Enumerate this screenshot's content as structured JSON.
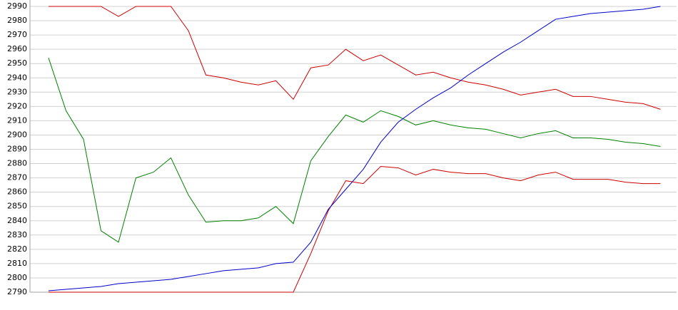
{
  "chart_data": {
    "type": "line",
    "categories": [
      null,
      null,
      null,
      null,
      null,
      null,
      null,
      null,
      null,
      null,
      null,
      null,
      null,
      null,
      null,
      null,
      null,
      null,
      null,
      null,
      null,
      null,
      null,
      null,
      null,
      null,
      null,
      null,
      null,
      null,
      null,
      null,
      null,
      null,
      null,
      null
    ],
    "series": [
      {
        "color": "#cc0000",
        "values": [
          2990,
          2990,
          2990,
          2990,
          2983,
          2990,
          2990,
          2990,
          2973,
          2942,
          2940,
          2937,
          2935,
          2938,
          2925,
          2947,
          2949,
          2960,
          2952,
          2956,
          2949,
          2942,
          2944,
          2940,
          2937,
          2935,
          2932,
          2928,
          2930,
          2932,
          2927,
          2927,
          2925,
          2923,
          2922,
          2918
        ]
      },
      {
        "color": "#008000",
        "values": [
          2954,
          2917,
          2897,
          2833,
          2825,
          2870,
          2874,
          2884,
          2858,
          2839,
          2840,
          2840,
          2842,
          2850,
          2838,
          2882,
          2899,
          2914,
          2909,
          2917,
          2913,
          2907,
          2910,
          2907,
          2905,
          2904,
          2901,
          2898,
          2901,
          2903,
          2898,
          2898,
          2897,
          2895,
          2894,
          2892
        ]
      },
      {
        "color": "#cc0000",
        "values": [
          2790,
          2790,
          2790,
          2790,
          2790,
          2790,
          2790,
          2790,
          2790,
          2790,
          2790,
          2790,
          2790,
          2790,
          2790,
          2817,
          2847,
          2868,
          2866,
          2878,
          2877,
          2872,
          2876,
          2874,
          2873,
          2873,
          2870,
          2868,
          2872,
          2874,
          2869,
          2869,
          2869,
          2867,
          2866,
          2866
        ]
      },
      {
        "color": "#0000cc",
        "values": [
          2791,
          2792,
          2793,
          2794,
          2796,
          2797,
          2798,
          2799,
          2801,
          2803,
          2805,
          2806,
          2807,
          2810,
          2811,
          2825,
          2848,
          2862,
          2876,
          2895,
          2909,
          2918,
          2926,
          2933,
          2942,
          2950,
          2958,
          2965,
          2973,
          2981,
          2983,
          2985,
          2986,
          2987,
          2988,
          2990
        ]
      }
    ],
    "ylim": [
      2790,
      2990
    ],
    "yticks": [
      2790,
      2800,
      2810,
      2820,
      2830,
      2840,
      2850,
      2860,
      2870,
      2880,
      2890,
      2900,
      2910,
      2920,
      2930,
      2940,
      2950,
      2960,
      2970,
      2980,
      2990
    ],
    "grid": true
  }
}
